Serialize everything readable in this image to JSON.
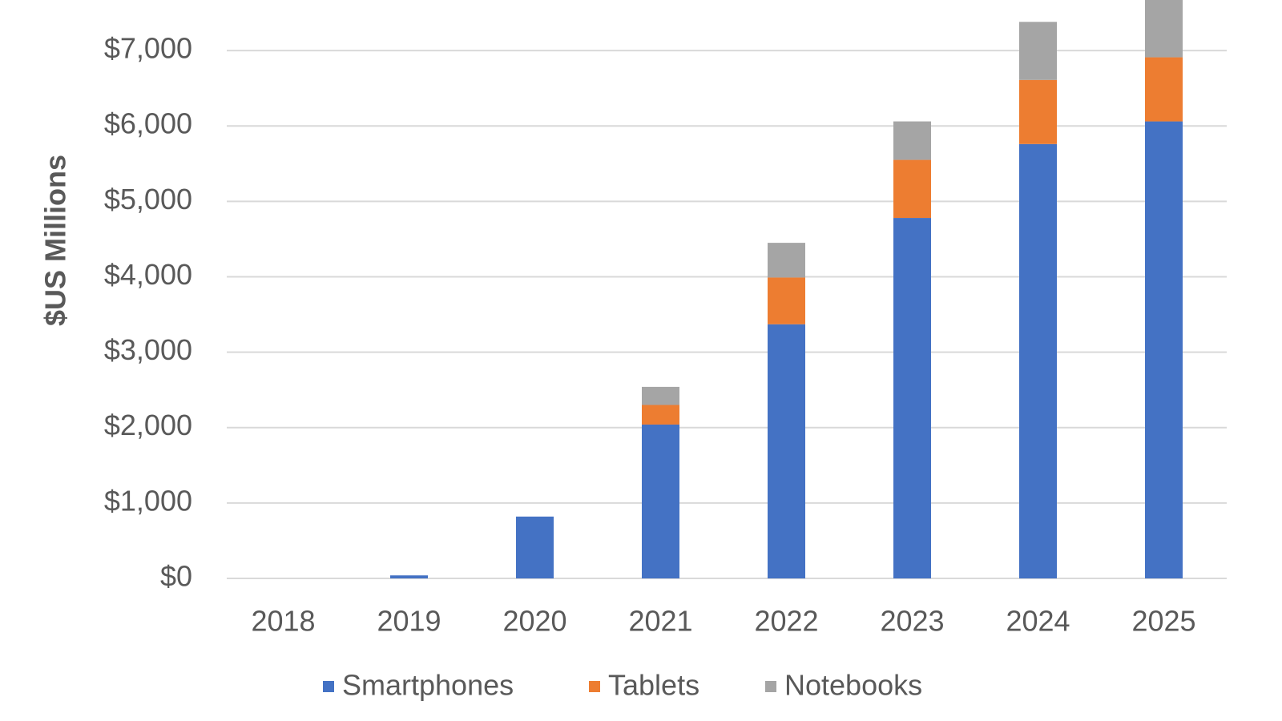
{
  "chart_data": {
    "type": "stacked_bar",
    "y_label": "$US Millions",
    "categories": [
      "2018",
      "2019",
      "2020",
      "2021",
      "2022",
      "2023",
      "2024",
      "2025"
    ],
    "series": [
      {
        "name": "Smartphones",
        "color": "#4472c4",
        "values": [
          0,
          40,
          820,
          2040,
          3370,
          4780,
          5760,
          6060
        ]
      },
      {
        "name": "Tablets",
        "color": "#ed7d31",
        "values": [
          0,
          0,
          0,
          260,
          620,
          770,
          850,
          850
        ]
      },
      {
        "name": "Notebooks",
        "color": "#a5a5a5",
        "values": [
          0,
          0,
          0,
          240,
          460,
          510,
          770,
          1100
        ]
      }
    ],
    "ylim": [
      0,
      7670
    ],
    "yticks": [
      {
        "value": 0,
        "label": "$0"
      },
      {
        "value": 1000,
        "label": "$1,000"
      },
      {
        "value": 2000,
        "label": "$2,000"
      },
      {
        "value": 3000,
        "label": "$3,000"
      },
      {
        "value": 4000,
        "label": "$4,000"
      },
      {
        "value": 5000,
        "label": "$5,000"
      },
      {
        "value": 6000,
        "label": "$6,000"
      },
      {
        "value": 7000,
        "label": "$7,000"
      }
    ],
    "grid": true,
    "legend": "bottom"
  }
}
